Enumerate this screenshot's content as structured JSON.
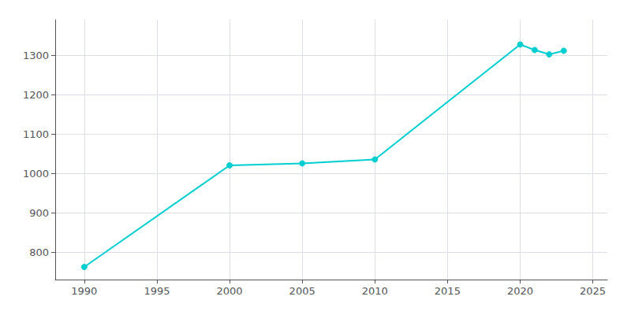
{
  "chart_data": {
    "type": "line",
    "x": [
      1990,
      2000,
      2005,
      2010,
      2020,
      2021,
      2022,
      2023
    ],
    "values": [
      762,
      1020,
      1025,
      1035,
      1327,
      1313,
      1302,
      1311
    ],
    "color": "#00CED1",
    "marker": "circle",
    "xlim": [
      1988,
      2026
    ],
    "ylim": [
      730,
      1390
    ],
    "xticks": [
      1990,
      1995,
      2000,
      2005,
      2010,
      2015,
      2020,
      2025
    ],
    "yticks": [
      800,
      900,
      1000,
      1100,
      1200,
      1300
    ],
    "grid": true
  }
}
